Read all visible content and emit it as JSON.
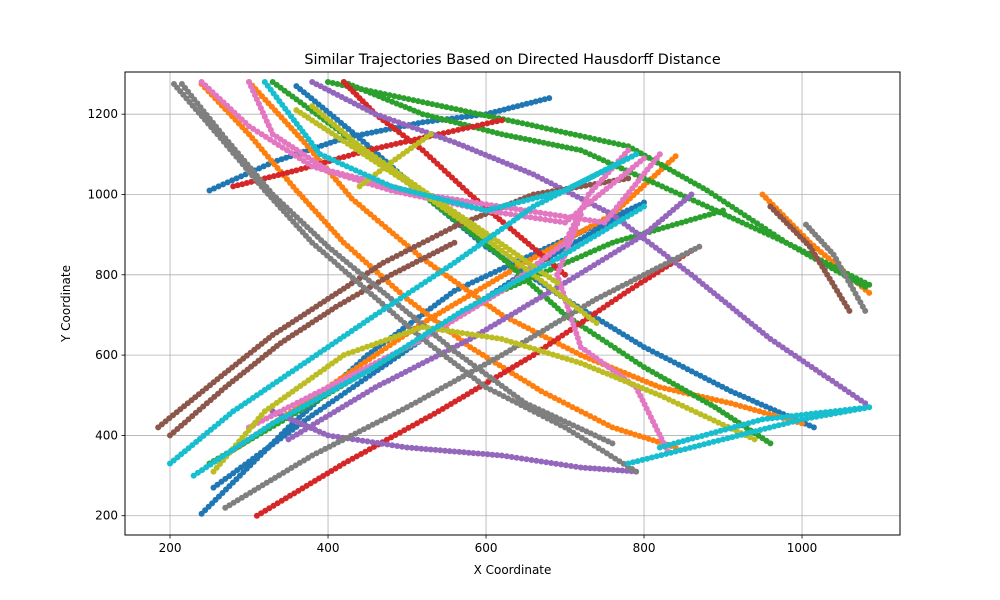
{
  "chart_data": {
    "type": "scatter",
    "title": "Similar Trajectories Based on Directed Hausdorff Distance",
    "xlabel": "X Coordinate",
    "ylabel": "Y Coordinate",
    "xlim": [
      143,
      1124
    ],
    "ylim": [
      152,
      1305
    ],
    "xticks": [
      200,
      400,
      600,
      800,
      1000
    ],
    "yticks": [
      200,
      400,
      600,
      800,
      1000,
      1200
    ],
    "grid": true,
    "legend": "none",
    "colors": [
      "#1f77b4",
      "#ff7f0e",
      "#2ca02c",
      "#d62728",
      "#9467bd",
      "#8c564b",
      "#e377c2",
      "#7f7f7f",
      "#bcbd22",
      "#17becf"
    ],
    "series": [
      {
        "color_index": 0,
        "points": [
          [
            240,
            205
          ],
          [
            350,
            420
          ],
          [
            450,
            600
          ],
          [
            560,
            760
          ],
          [
            680,
            870
          ],
          [
            790,
            970
          ]
        ]
      },
      {
        "color_index": 0,
        "points": [
          [
            255,
            270
          ],
          [
            380,
            450
          ],
          [
            520,
            640
          ],
          [
            660,
            820
          ],
          [
            800,
            980
          ]
        ]
      },
      {
        "color_index": 0,
        "points": [
          [
            360,
            1270
          ],
          [
            440,
            1140
          ],
          [
            520,
            1000
          ],
          [
            600,
            870
          ],
          [
            700,
            740
          ],
          [
            800,
            620
          ],
          [
            910,
            510
          ],
          [
            1015,
            420
          ]
        ]
      },
      {
        "color_index": 0,
        "points": [
          [
            250,
            1010
          ],
          [
            330,
            1080
          ],
          [
            420,
            1140
          ],
          [
            520,
            1180
          ],
          [
            600,
            1200
          ],
          [
            680,
            1240
          ]
        ]
      },
      {
        "color_index": 1,
        "points": [
          [
            240,
            1275
          ],
          [
            300,
            1150
          ],
          [
            360,
            1010
          ],
          [
            420,
            880
          ],
          [
            500,
            740
          ],
          [
            580,
            620
          ],
          [
            670,
            510
          ],
          [
            760,
            420
          ],
          [
            840,
            370
          ]
        ]
      },
      {
        "color_index": 1,
        "points": [
          [
            300,
            1280
          ],
          [
            370,
            1130
          ],
          [
            430,
            990
          ],
          [
            520,
            840
          ],
          [
            620,
            700
          ],
          [
            720,
            600
          ],
          [
            820,
            520
          ],
          [
            910,
            480
          ],
          [
            1000,
            430
          ]
        ]
      },
      {
        "color_index": 1,
        "points": [
          [
            270,
            350
          ],
          [
            400,
            520
          ],
          [
            520,
            680
          ],
          [
            640,
            820
          ],
          [
            760,
            950
          ],
          [
            840,
            1095
          ]
        ]
      },
      {
        "color_index": 1,
        "points": [
          [
            950,
            1000
          ],
          [
            1010,
            880
          ],
          [
            1085,
            755
          ]
        ]
      },
      {
        "color_index": 2,
        "points": [
          [
            420,
            1280
          ],
          [
            520,
            1200
          ],
          [
            620,
            1150
          ],
          [
            720,
            1110
          ],
          [
            800,
            1040
          ],
          [
            880,
            970
          ],
          [
            980,
            880
          ],
          [
            1085,
            775
          ]
        ]
      },
      {
        "color_index": 2,
        "points": [
          [
            400,
            1280
          ],
          [
            520,
            1230
          ],
          [
            640,
            1180
          ],
          [
            780,
            1120
          ],
          [
            880,
            1010
          ],
          [
            980,
            880
          ],
          [
            1080,
            770
          ]
        ]
      },
      {
        "color_index": 2,
        "points": [
          [
            250,
            330
          ],
          [
            380,
            480
          ],
          [
            500,
            620
          ],
          [
            620,
            760
          ],
          [
            760,
            880
          ],
          [
            900,
            960
          ]
        ]
      },
      {
        "color_index": 2,
        "points": [
          [
            330,
            1280
          ],
          [
            420,
            1150
          ],
          [
            520,
            1000
          ],
          [
            610,
            860
          ],
          [
            700,
            700
          ],
          [
            800,
            570
          ],
          [
            890,
            470
          ],
          [
            960,
            380
          ]
        ]
      },
      {
        "color_index": 3,
        "points": [
          [
            310,
            200
          ],
          [
            420,
            330
          ],
          [
            540,
            460
          ],
          [
            660,
            600
          ],
          [
            780,
            760
          ],
          [
            860,
            860
          ]
        ]
      },
      {
        "color_index": 3,
        "points": [
          [
            280,
            1020
          ],
          [
            360,
            1060
          ],
          [
            450,
            1110
          ],
          [
            540,
            1150
          ],
          [
            620,
            1185
          ]
        ]
      },
      {
        "color_index": 3,
        "points": [
          [
            420,
            1280
          ],
          [
            460,
            1200
          ],
          [
            520,
            1110
          ],
          [
            580,
            1000
          ],
          [
            640,
            900
          ],
          [
            700,
            800
          ]
        ]
      },
      {
        "color_index": 4,
        "points": [
          [
            380,
            1280
          ],
          [
            460,
            1200
          ],
          [
            560,
            1130
          ],
          [
            660,
            1050
          ],
          [
            760,
            950
          ],
          [
            860,
            800
          ],
          [
            960,
            640
          ],
          [
            1080,
            480
          ]
        ]
      },
      {
        "color_index": 4,
        "points": [
          [
            330,
            460
          ],
          [
            400,
            400
          ],
          [
            500,
            370
          ],
          [
            620,
            350
          ],
          [
            720,
            320
          ],
          [
            790,
            310
          ]
        ]
      },
      {
        "color_index": 4,
        "points": [
          [
            350,
            390
          ],
          [
            460,
            520
          ],
          [
            580,
            640
          ],
          [
            700,
            780
          ],
          [
            800,
            900
          ],
          [
            860,
            1000
          ]
        ]
      },
      {
        "color_index": 5,
        "points": [
          [
            185,
            420
          ],
          [
            260,
            540
          ],
          [
            330,
            650
          ],
          [
            400,
            740
          ],
          [
            470,
            830
          ],
          [
            560,
            920
          ],
          [
            660,
            1000
          ],
          [
            780,
            1040
          ]
        ]
      },
      {
        "color_index": 5,
        "points": [
          [
            200,
            400
          ],
          [
            270,
            520
          ],
          [
            340,
            630
          ],
          [
            410,
            720
          ],
          [
            480,
            800
          ],
          [
            560,
            880
          ]
        ]
      },
      {
        "color_index": 5,
        "points": [
          [
            960,
            970
          ],
          [
            1010,
            870
          ],
          [
            1060,
            710
          ]
        ]
      },
      {
        "color_index": 6,
        "points": [
          [
            300,
            1280
          ],
          [
            330,
            1150
          ],
          [
            400,
            1060
          ],
          [
            520,
            1000
          ],
          [
            650,
            960
          ],
          [
            750,
            930
          ],
          [
            820,
            1100
          ]
        ]
      },
      {
        "color_index": 6,
        "points": [
          [
            240,
            1280
          ],
          [
            300,
            1170
          ],
          [
            380,
            1070
          ],
          [
            480,
            1010
          ],
          [
            600,
            960
          ],
          [
            700,
            930
          ],
          [
            800,
            1090
          ]
        ]
      },
      {
        "color_index": 6,
        "points": [
          [
            300,
            420
          ],
          [
            400,
            520
          ],
          [
            520,
            640
          ],
          [
            620,
            760
          ],
          [
            700,
            880
          ],
          [
            730,
            1000
          ],
          [
            780,
            1110
          ]
        ]
      },
      {
        "color_index": 6,
        "points": [
          [
            720,
            950
          ],
          [
            690,
            800
          ],
          [
            720,
            620
          ],
          [
            790,
            520
          ],
          [
            830,
            360
          ]
        ]
      },
      {
        "color_index": 7,
        "points": [
          [
            205,
            1275
          ],
          [
            260,
            1150
          ],
          [
            320,
            1010
          ],
          [
            380,
            880
          ],
          [
            450,
            760
          ],
          [
            520,
            640
          ],
          [
            600,
            520
          ],
          [
            700,
            420
          ],
          [
            790,
            310
          ]
        ]
      },
      {
        "color_index": 7,
        "points": [
          [
            215,
            1275
          ],
          [
            270,
            1140
          ],
          [
            330,
            1000
          ],
          [
            400,
            870
          ],
          [
            480,
            740
          ],
          [
            560,
            610
          ],
          [
            650,
            480
          ],
          [
            760,
            380
          ]
        ]
      },
      {
        "color_index": 7,
        "points": [
          [
            270,
            220
          ],
          [
            380,
            350
          ],
          [
            500,
            470
          ],
          [
            620,
            600
          ],
          [
            740,
            740
          ],
          [
            870,
            870
          ]
        ]
      },
      {
        "color_index": 7,
        "points": [
          [
            1005,
            925
          ],
          [
            1040,
            850
          ],
          [
            1080,
            710
          ]
        ]
      },
      {
        "color_index": 8,
        "points": [
          [
            255,
            310
          ],
          [
            320,
            460
          ],
          [
            420,
            600
          ],
          [
            520,
            670
          ],
          [
            620,
            640
          ],
          [
            720,
            580
          ],
          [
            820,
            500
          ],
          [
            940,
            390
          ]
        ]
      },
      {
        "color_index": 8,
        "points": [
          [
            360,
            1210
          ],
          [
            430,
            1120
          ],
          [
            500,
            1030
          ],
          [
            580,
            920
          ],
          [
            660,
            800
          ],
          [
            740,
            680
          ]
        ]
      },
      {
        "color_index": 8,
        "points": [
          [
            380,
            1220
          ],
          [
            440,
            1120
          ],
          [
            520,
            1010
          ],
          [
            610,
            890
          ],
          [
            690,
            780
          ]
        ]
      },
      {
        "color_index": 8,
        "points": [
          [
            440,
            1020
          ],
          [
            480,
            1080
          ],
          [
            530,
            1150
          ]
        ]
      },
      {
        "color_index": 9,
        "points": [
          [
            320,
            1280
          ],
          [
            390,
            1100
          ],
          [
            480,
            1020
          ],
          [
            600,
            960
          ],
          [
            700,
            1010
          ],
          [
            790,
            1100
          ]
        ]
      },
      {
        "color_index": 9,
        "points": [
          [
            200,
            330
          ],
          [
            280,
            460
          ],
          [
            370,
            580
          ],
          [
            460,
            700
          ],
          [
            560,
            830
          ],
          [
            660,
            970
          ],
          [
            790,
            1100
          ]
        ]
      },
      {
        "color_index": 9,
        "points": [
          [
            230,
            300
          ],
          [
            330,
            430
          ],
          [
            450,
            560
          ],
          [
            570,
            710
          ],
          [
            690,
            840
          ],
          [
            800,
            970
          ]
        ]
      },
      {
        "color_index": 9,
        "points": [
          [
            780,
            330
          ],
          [
            900,
            390
          ],
          [
            1000,
            440
          ],
          [
            1085,
            470
          ],
          [
            950,
            440
          ],
          [
            820,
            370
          ]
        ]
      }
    ]
  }
}
